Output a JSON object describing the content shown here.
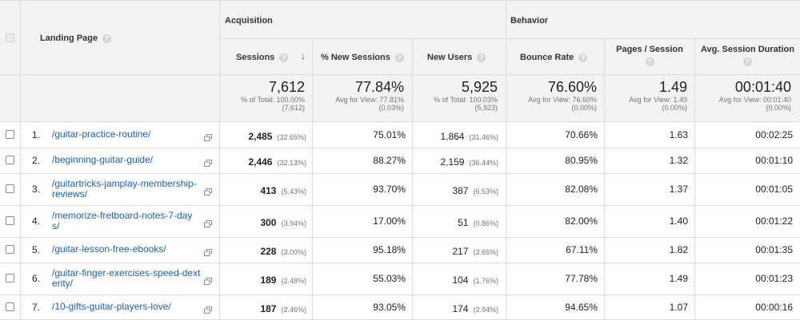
{
  "header": {
    "landing_page": "Landing Page",
    "acquisition": "Acquisition",
    "behavior": "Behavior",
    "help_glyph": "?",
    "columns": {
      "sessions": "Sessions",
      "new_sessions_pct": "% New Sessions",
      "new_users": "New Users",
      "bounce_rate": "Bounce Rate",
      "pages_session": "Pages / Session",
      "avg_duration": "Avg. Session Duration"
    },
    "sort_indicator": "↓"
  },
  "totals": {
    "sessions": {
      "value": "7,612",
      "sub1": "% of Total: 100.00%",
      "sub2": "(7,612)"
    },
    "new_sessions_pct": {
      "value": "77.84%",
      "sub1": "Avg for View: 77.81%",
      "sub2": "(0.03%)"
    },
    "new_users": {
      "value": "5,925",
      "sub1": "% of Total: 100.03%",
      "sub2": "(5,923)"
    },
    "bounce_rate": {
      "value": "76.60%",
      "sub1": "Avg for View: 76.60%",
      "sub2": "(0.00%)"
    },
    "pages_session": {
      "value": "1.49",
      "sub1": "Avg for View: 1.49",
      "sub2": "(0.00%)"
    },
    "avg_duration": {
      "value": "00:01:40",
      "sub1": "Avg for View: 00:01:40",
      "sub2": "(0.00%)"
    }
  },
  "rows": [
    {
      "index": "1.",
      "page_lines": [
        "/guitar-practice-routine/"
      ],
      "sessions": "2,485",
      "sessions_pct": "(32.65%)",
      "new_sessions": "75.01%",
      "new_users": "1,864",
      "new_users_pct": "(31.46%)",
      "bounce": "70.66%",
      "pages": "1.63",
      "duration": "00:02:25"
    },
    {
      "index": "2.",
      "page_lines": [
        "/beginning-guitar-guide/"
      ],
      "sessions": "2,446",
      "sessions_pct": "(32.13%)",
      "new_sessions": "88.27%",
      "new_users": "2,159",
      "new_users_pct": "(36.44%)",
      "bounce": "80.95%",
      "pages": "1.32",
      "duration": "00:01:10"
    },
    {
      "index": "3.",
      "page_lines": [
        "/guitartricks-jamplay-membership-",
        "reviews/"
      ],
      "sessions": "413",
      "sessions_pct": "(5.43%)",
      "new_sessions": "93.70%",
      "new_users": "387",
      "new_users_pct": "(6.53%)",
      "bounce": "82.08%",
      "pages": "1.37",
      "duration": "00:01:05"
    },
    {
      "index": "4.",
      "page_lines": [
        "/memorize-fretboard-notes-7-day",
        "s/"
      ],
      "sessions": "300",
      "sessions_pct": "(3.94%)",
      "new_sessions": "17.00%",
      "new_users": "51",
      "new_users_pct": "(0.86%)",
      "bounce": "82.00%",
      "pages": "1.40",
      "duration": "00:01:22"
    },
    {
      "index": "5.",
      "page_lines": [
        "/guitar-lesson-free-ebooks/"
      ],
      "sessions": "228",
      "sessions_pct": "(3.00%)",
      "new_sessions": "95.18%",
      "new_users": "217",
      "new_users_pct": "(3.66%)",
      "bounce": "67.11%",
      "pages": "1.82",
      "duration": "00:01:35"
    },
    {
      "index": "6.",
      "page_lines": [
        "/guitar-finger-exercises-speed-dext",
        "erity/"
      ],
      "sessions": "189",
      "sessions_pct": "(2.48%)",
      "new_sessions": "55.03%",
      "new_users": "104",
      "new_users_pct": "(1.76%)",
      "bounce": "77.78%",
      "pages": "1.49",
      "duration": "00:01:23"
    },
    {
      "index": "7.",
      "page_lines": [
        "/10-gifts-guitar-players-love/"
      ],
      "sessions": "187",
      "sessions_pct": "(2.46%)",
      "new_sessions": "93.05%",
      "new_users": "174",
      "new_users_pct": "(2.94%)",
      "bounce": "94.65%",
      "pages": "1.07",
      "duration": "00:00:16"
    }
  ]
}
